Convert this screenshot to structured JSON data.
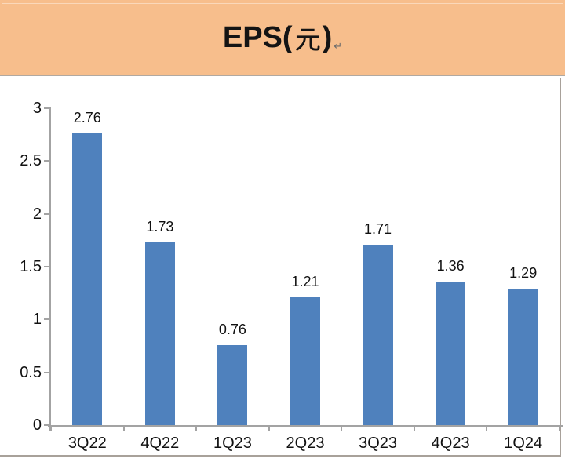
{
  "header": {
    "title": "EPS(元)",
    "title_prefix": "EPS(",
    "title_cjk": "元",
    "title_suffix": ")",
    "trailing_mark": "↵",
    "background": "#f7be8c"
  },
  "chart_data": {
    "type": "bar",
    "title": "EPS(元)",
    "xlabel": "",
    "ylabel": "",
    "categories": [
      "3Q22",
      "4Q22",
      "1Q23",
      "2Q23",
      "3Q23",
      "4Q23",
      "1Q24"
    ],
    "values": [
      2.76,
      1.73,
      0.76,
      1.21,
      1.71,
      1.36,
      1.29
    ],
    "value_labels": [
      "2.76",
      "1.73",
      "0.76",
      "1.21",
      "1.71",
      "1.36",
      "1.29"
    ],
    "ylim": [
      0,
      3
    ],
    "ytick_step": 0.5,
    "ytick_labels": [
      "0",
      "0.5",
      "1",
      "1.5",
      "2",
      "2.5",
      "3"
    ],
    "grid": "off",
    "legend": "none",
    "bar_color": "#4f81bd",
    "axis_color": "#a3a3a3",
    "text_color": "#111111"
  }
}
